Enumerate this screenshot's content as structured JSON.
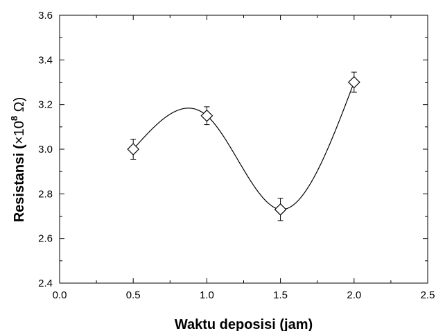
{
  "chart_data": {
    "type": "scatter",
    "xlabel": "Waktu deposisi  (jam)",
    "ylabel_main": "Resistansi (",
    "ylabel_mult": "×10",
    "ylabel_exp": "8",
    "ylabel_unit": " Ω)",
    "xlim": [
      0.0,
      2.5
    ],
    "ylim": [
      2.4,
      3.6
    ],
    "x_ticks": [
      0.0,
      0.5,
      1.0,
      1.5,
      2.0,
      2.5
    ],
    "y_ticks": [
      2.4,
      2.6,
      2.8,
      3.0,
      3.2,
      3.4,
      3.6
    ],
    "x_tick_labels": [
      "0.0",
      "0.5",
      "1.0",
      "1.5",
      "2.0",
      "2.5"
    ],
    "y_tick_labels": [
      "2.4",
      "2.6",
      "2.8",
      "3.0",
      "3.2",
      "3.4",
      "3.6"
    ],
    "grid": false,
    "marker": "open-diamond",
    "fit": "spline",
    "series": [
      {
        "x": [
          0.5,
          1.0,
          1.5,
          2.0
        ],
        "y": [
          3.0,
          3.15,
          2.73,
          3.3
        ],
        "error": [
          0.045,
          0.04,
          0.05,
          0.045
        ]
      }
    ]
  }
}
